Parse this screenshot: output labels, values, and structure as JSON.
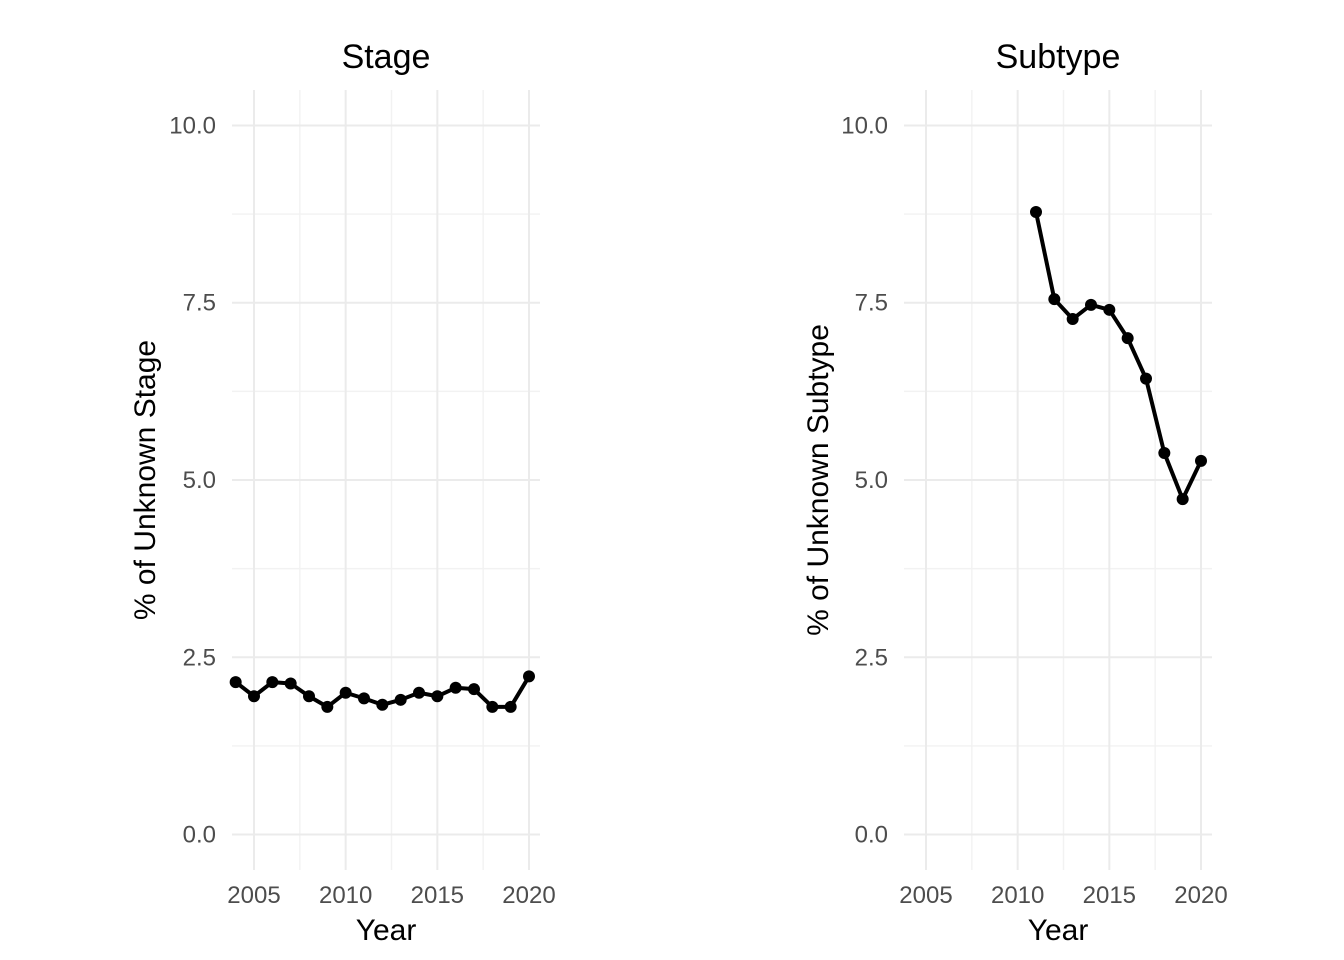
{
  "chart_data": [
    {
      "type": "line",
      "title": "Stage",
      "xlabel": "Year",
      "ylabel": "% of Unknown Stage",
      "xlim": [
        2003.8,
        2020.6
      ],
      "ylim": [
        -0.5,
        10.5
      ],
      "xticks": [
        2005,
        2010,
        2015,
        2020
      ],
      "xtick_labels": [
        "2005",
        "2010",
        "2015",
        "2020"
      ],
      "yticks": [
        0,
        2.5,
        5,
        7.5,
        10
      ],
      "ytick_labels": [
        "0.0",
        "2.5",
        "5.0",
        "7.5",
        "10.0"
      ],
      "grid": true,
      "series_color": "#000000",
      "series": [
        {
          "x": [
            2004,
            2005,
            2006,
            2007,
            2008,
            2009,
            2010,
            2011,
            2012,
            2013,
            2014,
            2015,
            2016,
            2017,
            2018,
            2019,
            2020
          ],
          "y": [
            2.15,
            1.95,
            2.15,
            2.13,
            1.95,
            1.8,
            2.0,
            1.92,
            1.83,
            1.9,
            2.0,
            1.95,
            2.07,
            2.05,
            1.8,
            1.8,
            2.23
          ]
        }
      ]
    },
    {
      "type": "line",
      "title": "Subtype",
      "xlabel": "Year",
      "ylabel": "% of Unknown Subtype",
      "xlim": [
        2003.8,
        2020.6
      ],
      "ylim": [
        -0.5,
        10.5
      ],
      "xticks": [
        2005,
        2010,
        2015,
        2020
      ],
      "xtick_labels": [
        "2005",
        "2010",
        "2015",
        "2020"
      ],
      "yticks": [
        0,
        2.5,
        5,
        7.5,
        10
      ],
      "ytick_labels": [
        "0.0",
        "2.5",
        "5.0",
        "7.5",
        "10.0"
      ],
      "grid": true,
      "series_color": "#000000",
      "series": [
        {
          "x": [
            2011,
            2012,
            2013,
            2014,
            2015,
            2016,
            2017,
            2018,
            2019,
            2020
          ],
          "y": [
            8.78,
            7.55,
            7.27,
            7.47,
            7.4,
            7.0,
            6.43,
            5.38,
            4.73,
            5.27
          ]
        }
      ]
    }
  ]
}
